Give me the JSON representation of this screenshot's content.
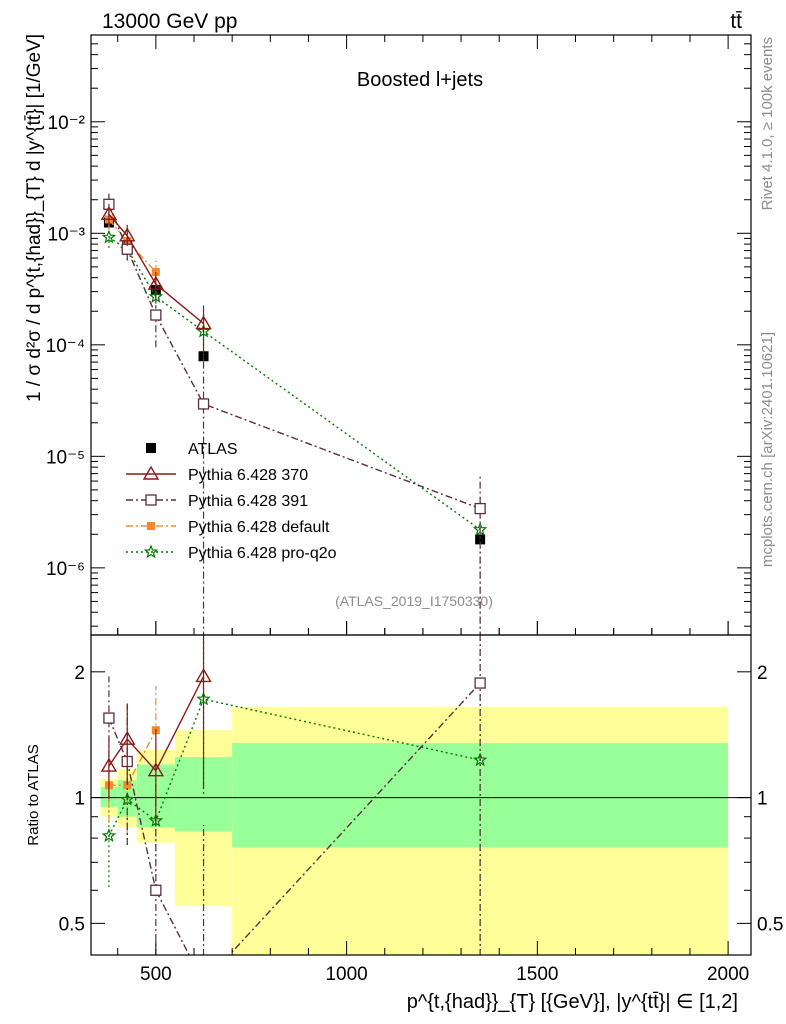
{
  "header": {
    "energy": "13000 GeV pp",
    "process": "tt̄",
    "title": "Boosted l+jets",
    "analysis": "(ATLAS_2019_I1750330)",
    "rivet_label": "Rivet 4.1.0, ≥ 100k events",
    "source_label": "mcplots.cern.ch [arXiv:2401.10621]"
  },
  "axes": {
    "ylabel_top": "1 / σ d²σ / d p^{t,{had}}_{T} d |y^{tt̄}| [1/GeV]",
    "ylabel_bottom": "Ratio to ATLAS",
    "xlabel": "p^{t,{had}}_{T} [{GeV}], |y^{tt̄}| ∈ [1,2]",
    "top_ticks": [
      "10⁻⁶",
      "10⁻⁵",
      "10⁻⁴",
      "10⁻³",
      "10⁻²"
    ],
    "ratio_ticks": [
      "0.5",
      "1",
      "2"
    ],
    "x_ticks": [
      "500",
      "1000",
      "1500",
      "2000"
    ]
  },
  "chart_data": {
    "type": "line",
    "xlim": [
      330,
      2060
    ],
    "ylim": [
      2.5e-07,
      0.06
    ],
    "ylog": true,
    "ratio_ylim": [
      0.42,
      2.45
    ],
    "bins": [
      [
        355,
        400
      ],
      [
        400,
        450
      ],
      [
        450,
        550
      ],
      [
        550,
        700
      ],
      [
        700,
        2000
      ]
    ],
    "band_inner": [
      [
        0.95,
        1.06
      ],
      [
        0.9,
        1.1
      ],
      [
        0.85,
        1.2
      ],
      [
        0.83,
        1.25
      ],
      [
        0.76,
        1.35
      ]
    ],
    "band_outer": [
      [
        0.9,
        1.11
      ],
      [
        0.85,
        1.17
      ],
      [
        0.78,
        1.3
      ],
      [
        0.55,
        1.45
      ],
      [
        0.37,
        1.65
      ]
    ],
    "series": [
      {
        "name": "ATLAS",
        "color": "#000000",
        "marker": "square-filled",
        "dash": "none",
        "x": [
          377,
          425,
          500,
          625,
          1350
        ],
        "y": [
          0.00125,
          0.00078,
          0.00031,
          7.9e-05,
          1.8e-06
        ],
        "err_lo": [
          2e-05,
          2e-05,
          1e-05,
          4e-06,
          1.5e-07
        ],
        "err_hi": [
          2e-05,
          2e-05,
          1e-05,
          4e-06,
          1.5e-07
        ],
        "ratio": [
          1.0,
          1.0,
          1.0,
          1.0,
          1.0
        ],
        "ratio_err_lo": [
          0.0,
          0.0,
          0.0,
          0.0,
          0.0
        ],
        "ratio_err_hi": [
          0.0,
          0.0,
          0.0,
          0.0,
          0.0
        ]
      },
      {
        "name": "Pythia 6.428 370",
        "color": "#8b1a1a",
        "marker": "triangle-open",
        "dash": "none",
        "x": [
          377,
          425,
          500,
          625
        ],
        "y": [
          0.00148,
          0.00095,
          0.00035,
          0.000155
        ],
        "err_lo": [
          0.00028,
          0.00018,
          9e-05,
          7e-05
        ],
        "err_hi": [
          0.00035,
          0.00024,
          0.0001,
          7e-05
        ],
        "ratio": [
          1.19,
          1.38,
          1.16,
          1.95
        ],
        "ratio_err_lo": [
          0.2,
          0.3,
          0.3,
          0.9
        ],
        "ratio_err_hi": [
          0.2,
          0.3,
          0.3,
          0.5
        ]
      },
      {
        "name": "Pythia 6.428 391",
        "color": "#5c2e3d",
        "marker": "square-open",
        "dash": "7,3,2,3",
        "x": [
          377,
          425,
          500,
          625,
          1350
        ],
        "y": [
          0.00182,
          0.00072,
          0.000185,
          2.95e-05,
          3.4e-06
        ],
        "err_lo": [
          0.00035,
          0.00015,
          9e-05,
          3e-05,
          3.3e-06
        ],
        "err_hi": [
          0.00045,
          0.0002,
          0.0001,
          5e-05,
          3.3e-06
        ],
        "ratio": [
          1.55,
          1.22,
          0.6,
          0.36,
          1.88
        ],
        "ratio_err_lo": [
          0.4,
          0.45,
          0.3,
          0.36,
          1.88
        ],
        "ratio_err_hi": [
          0.4,
          0.45,
          0.5,
          0.5,
          1.88
        ]
      },
      {
        "name": "Pythia 6.428 default",
        "color": "#f28b30",
        "marker": "square-filled",
        "dash": "7,3,2,3",
        "x": [
          377,
          425,
          500
        ],
        "y": [
          0.00133,
          0.00085,
          0.00045
        ],
        "err_lo": [
          0.00025,
          0.00017,
          0.00012
        ],
        "err_hi": [
          0.00025,
          0.00017,
          0.00012
        ],
        "ratio": [
          1.07,
          1.07,
          1.45
        ],
        "ratio_err_lo": [
          0.2,
          0.25,
          0.35
        ],
        "ratio_err_hi": [
          0.2,
          0.25,
          0.4
        ]
      },
      {
        "name": "Pythia 6.428 pro-q2o",
        "color": "#007a00",
        "marker": "star",
        "dash": "2,3",
        "x": [
          377,
          425,
          500,
          625,
          1350
        ],
        "y": [
          0.00092,
          0.00072,
          0.00027,
          0.000132,
          2.2e-06
        ],
        "err_lo": [
          0.00018,
          0.00015,
          8e-05,
          6e-05,
          2.1e-06
        ],
        "err_hi": [
          0.00018,
          0.00015,
          8e-05,
          6e-05,
          2.1e-06
        ],
        "ratio": [
          0.81,
          0.99,
          0.88,
          1.72,
          1.23
        ],
        "ratio_err_lo": [
          0.2,
          0.22,
          0.3,
          0.7,
          1.23
        ],
        "ratio_err_hi": [
          0.2,
          0.22,
          0.3,
          0.7,
          1.23
        ]
      }
    ]
  }
}
